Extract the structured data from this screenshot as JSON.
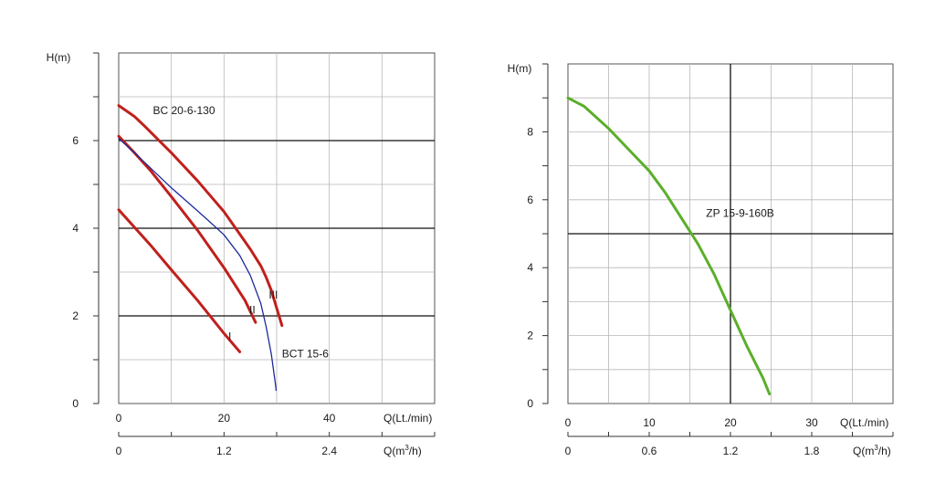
{
  "chart_data": [
    {
      "type": "line",
      "xlabel": "Q(Lt./min)",
      "ylabel": "H(m)",
      "xlim": [
        0,
        60
      ],
      "ylim": [
        0,
        8
      ],
      "x_ticks": [
        0,
        20,
        40
      ],
      "y_ticks": [
        0,
        2,
        4,
        6
      ],
      "secondary_axis": {
        "label_main": "Q(m",
        "label_sup": "3",
        "label_tail": "/h)",
        "ticks": [
          "0",
          "1.2",
          "2.4"
        ],
        "tick_values": [
          0,
          20,
          40
        ]
      },
      "grid": true,
      "series": [
        {
          "name": "BC 20-6-130",
          "color": "#c0201c",
          "x": [
            0,
            3,
            5,
            10,
            15,
            20,
            25,
            27,
            28,
            29,
            30,
            31
          ],
          "y": [
            6.8,
            6.55,
            6.32,
            5.72,
            5.08,
            4.38,
            3.52,
            3.14,
            2.88,
            2.58,
            2.18,
            1.78
          ]
        },
        {
          "name": "II",
          "color": "#c0201c",
          "x": [
            0,
            3,
            6,
            10,
            15,
            20,
            24,
            26
          ],
          "y": [
            6.1,
            5.72,
            5.32,
            4.72,
            3.95,
            3.1,
            2.35,
            1.85
          ]
        },
        {
          "name": "I",
          "color": "#c0201c",
          "x": [
            0,
            3,
            6,
            10,
            15,
            20,
            23
          ],
          "y": [
            4.42,
            4.02,
            3.62,
            3.05,
            2.35,
            1.6,
            1.18
          ]
        },
        {
          "name": "BCT 15-6",
          "color": "#1c2a9a",
          "x": [
            0,
            3,
            6,
            10,
            14,
            17,
            20,
            23,
            25,
            27,
            28,
            29,
            29.5,
            29.8,
            29.9
          ],
          "y": [
            6.05,
            5.72,
            5.38,
            4.92,
            4.5,
            4.18,
            3.85,
            3.38,
            2.92,
            2.28,
            1.75,
            1.12,
            0.68,
            0.42,
            0.3
          ]
        }
      ],
      "annotations": [
        {
          "text": "BC 20-6-130",
          "x": 6.5,
          "y": 6.6,
          "color": "#c0201c"
        },
        {
          "text": "III",
          "x": 28.5,
          "y": 2.4,
          "color": "#c0201c"
        },
        {
          "text": "II",
          "x": 24.8,
          "y": 2.05,
          "color": "#c0201c"
        },
        {
          "text": "I",
          "x": 20.8,
          "y": 1.45,
          "color": "#c0201c"
        },
        {
          "text": "BCT 15-6",
          "x": 31,
          "y": 1.05,
          "color": "#1c2a9a"
        }
      ]
    },
    {
      "type": "line",
      "xlabel": "Q(Lt./min)",
      "ylabel": "H(m)",
      "xlim": [
        0,
        40
      ],
      "ylim": [
        0,
        10
      ],
      "x_ticks": [
        0,
        10,
        20,
        30
      ],
      "y_ticks": [
        0,
        2,
        4,
        6,
        8
      ],
      "secondary_axis": {
        "label_main": "Q(m",
        "label_sup": "3",
        "label_tail": "/h)",
        "ticks": [
          "0",
          "0.6",
          "1.2",
          "1.8"
        ],
        "tick_values": [
          0,
          10,
          20,
          30
        ]
      },
      "grid": true,
      "series": [
        {
          "name": "ZP 15-9-160B",
          "color": "#5aaf2a",
          "x": [
            0,
            2,
            5,
            8,
            10,
            12,
            14,
            16,
            18,
            20,
            22,
            24,
            24.8
          ],
          "y": [
            9.0,
            8.75,
            8.1,
            7.35,
            6.85,
            6.2,
            5.45,
            4.7,
            3.8,
            2.75,
            1.7,
            0.75,
            0.28
          ]
        }
      ],
      "annotations": [
        {
          "text": "ZP 15-9-160B",
          "x": 17,
          "y": 5.5,
          "color": "#5aaf2a"
        }
      ]
    }
  ]
}
